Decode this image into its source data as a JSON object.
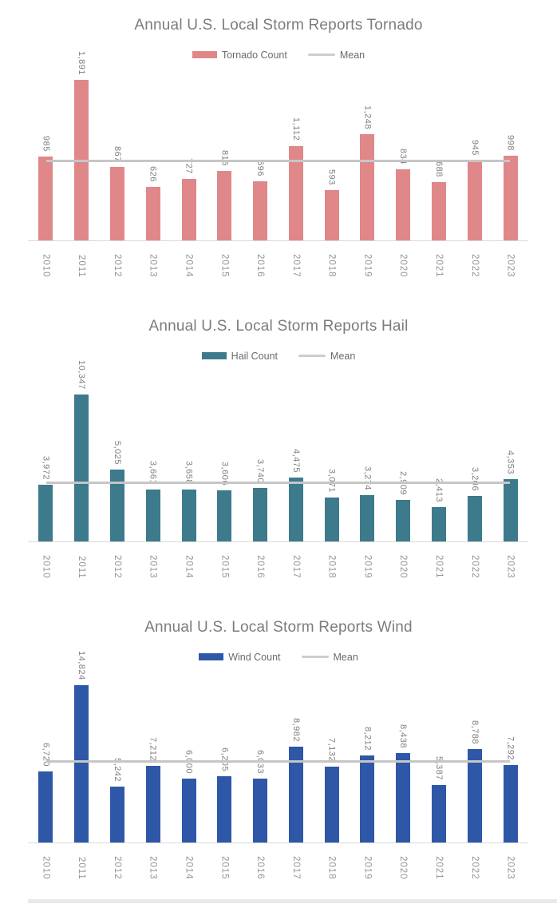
{
  "chart_data": [
    {
      "type": "bar",
      "title": "Annual U.S. Local Storm Reports Tornado",
      "legend": [
        "Tornado Count",
        "Mean"
      ],
      "bar_color": "#E0878A",
      "mean_color": "#C6C6C6",
      "categories": [
        "2010",
        "2011",
        "2012",
        "2013",
        "2014",
        "2015",
        "2016",
        "2017",
        "2018",
        "2019",
        "2020",
        "2021",
        "2022",
        "2023"
      ],
      "values": [
        985,
        1891,
        867,
        626,
        727,
        816,
        696,
        1112,
        593,
        1248,
        834,
        688,
        945,
        998
      ],
      "value_labels": [
        "985",
        "1,891",
        "867",
        "626",
        "727",
        "816",
        "696",
        "1,112",
        "593",
        "1,248",
        "834",
        "688",
        "945",
        "998"
      ],
      "mean": 930,
      "xlabel": "",
      "ylabel": "",
      "ylim": [
        0,
        2000
      ],
      "grid": false,
      "legend_position": "top"
    },
    {
      "type": "bar",
      "title": "Annual U.S. Local Storm Reports Hail",
      "legend": [
        "Hail Count",
        "Mean"
      ],
      "bar_color": "#3C7A8C",
      "mean_color": "#C6C6C6",
      "categories": [
        "2010",
        "2011",
        "2012",
        "2013",
        "2014",
        "2015",
        "2016",
        "2017",
        "2018",
        "2019",
        "2020",
        "2021",
        "2022",
        "2023"
      ],
      "values": [
        3972,
        10347,
        5025,
        3661,
        3658,
        3606,
        3740,
        4475,
        3071,
        3274,
        2909,
        2413,
        3206,
        4353
      ],
      "value_labels": [
        "3,972",
        "10,347",
        "5,025",
        "3,661",
        "3,658",
        "3,606",
        "3,740",
        "4,475",
        "3,071",
        "3,274",
        "2,909",
        "2,413",
        "3,206",
        "4,353"
      ],
      "mean": 4122,
      "xlabel": "",
      "ylabel": "",
      "ylim": [
        0,
        11000
      ],
      "grid": false,
      "legend_position": "top"
    },
    {
      "type": "bar",
      "title": "Annual U.S. Local Storm Reports Wind",
      "legend": [
        "Wind Count",
        "Mean"
      ],
      "bar_color": "#2E57A7",
      "mean_color": "#C6C6C6",
      "categories": [
        "2010",
        "2011",
        "2012",
        "2013",
        "2014",
        "2015",
        "2016",
        "2017",
        "2018",
        "2019",
        "2020",
        "2021",
        "2022",
        "2023"
      ],
      "values": [
        6720,
        14824,
        5242,
        7212,
        6000,
        6205,
        6033,
        8982,
        7132,
        8212,
        8438,
        5387,
        8788,
        7292
      ],
      "value_labels": [
        "6,720",
        "14,824",
        "5,242",
        "7,212",
        "6,000",
        "6,205",
        "6,033",
        "8,982",
        "7,132",
        "8,212",
        "8,438",
        "5,387",
        "8,788",
        "7,292"
      ],
      "mean": 7605,
      "xlabel": "",
      "ylabel": "",
      "ylim": [
        0,
        16000
      ],
      "grid": false,
      "legend_position": "top"
    }
  ]
}
